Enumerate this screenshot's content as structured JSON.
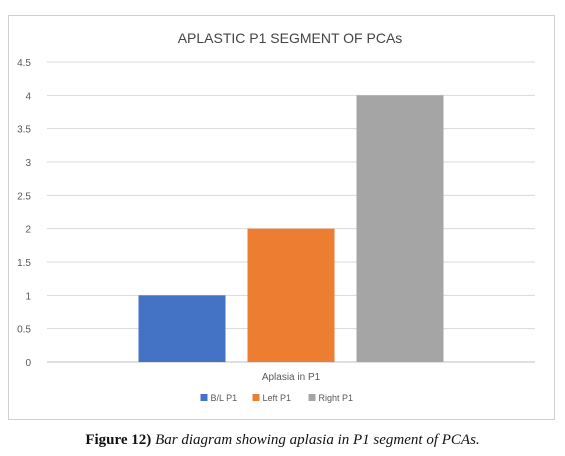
{
  "chart_data": {
    "type": "bar",
    "title": "APLASTIC P1 SEGMENT OF PCAs",
    "categories": [
      "Aplasia in P1"
    ],
    "series": [
      {
        "name": "B/L P1",
        "values": [
          1
        ],
        "color": "#4472c4"
      },
      {
        "name": "Left P1",
        "values": [
          2
        ],
        "color": "#ed7d31"
      },
      {
        "name": "Right P1",
        "values": [
          4
        ],
        "color": "#a5a5a5"
      }
    ],
    "ylim": [
      0,
      4.5
    ],
    "y_ticks": [
      "0",
      "0.5",
      "1",
      "1.5",
      "2",
      "2.5",
      "3",
      "3.5",
      "4",
      "4.5"
    ],
    "grid": true,
    "legend_position": "bottom"
  },
  "caption": {
    "lead": "Figure 12)",
    "text": "Bar diagram showing aplasia in P1 segment of PCAs."
  }
}
